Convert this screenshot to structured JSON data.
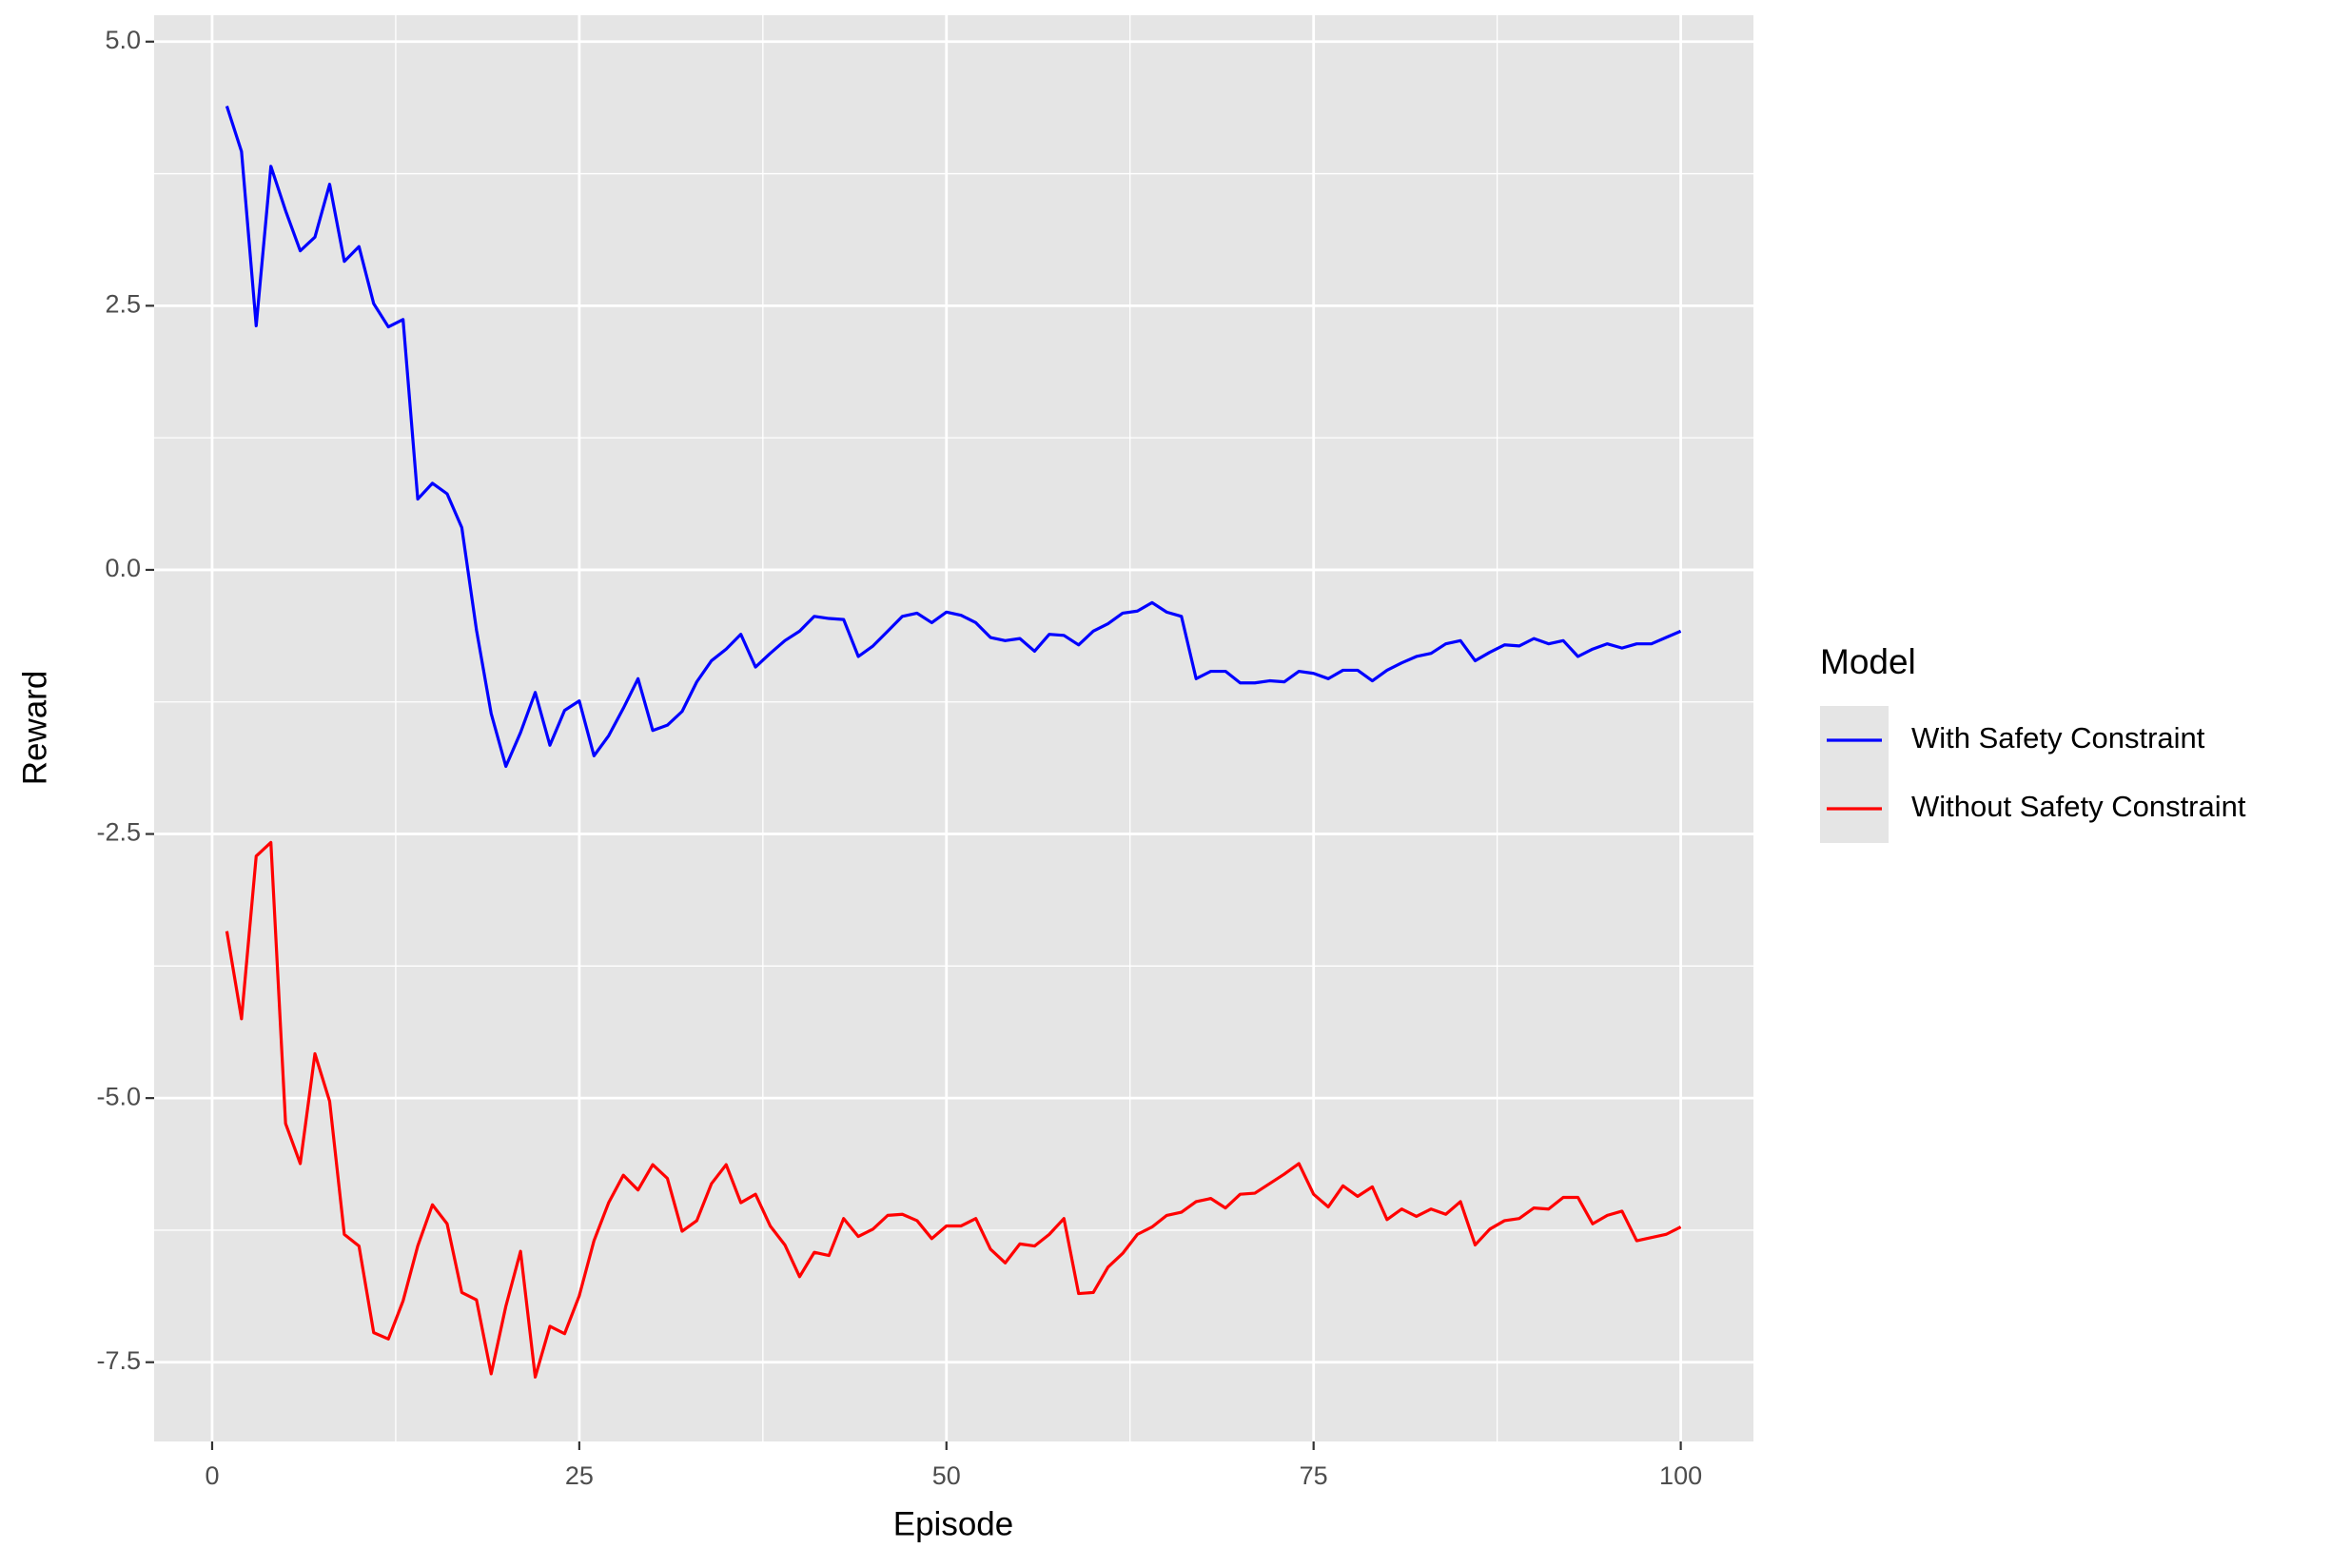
{
  "chart_data": {
    "type": "line",
    "x_label": "Episode",
    "y_label": "Reward",
    "legend_title": "Model",
    "legend_position": "right",
    "grid": true,
    "panel_color": "#e5e5e5",
    "xlim": [
      -3.95,
      104.95
    ],
    "ylim": [
      -8.25,
      5.25
    ],
    "xticks": [
      0,
      25,
      50,
      75,
      100
    ],
    "yticks": [
      -7.5,
      {
        "value": -5,
        "label": "-5.0"
      },
      -2.5,
      {
        "value": 0,
        "label": "0.0"
      },
      2.5,
      {
        "value": 5,
        "label": "5.0"
      }
    ],
    "x": [
      1,
      2,
      3,
      4,
      5,
      6,
      7,
      8,
      9,
      10,
      11,
      12,
      13,
      14,
      15,
      16,
      17,
      18,
      19,
      20,
      21,
      22,
      23,
      24,
      25,
      26,
      27,
      28,
      29,
      30,
      31,
      32,
      33,
      34,
      35,
      36,
      37,
      38,
      39,
      40,
      41,
      42,
      43,
      44,
      45,
      46,
      47,
      48,
      49,
      50,
      51,
      52,
      53,
      54,
      55,
      56,
      57,
      58,
      59,
      60,
      61,
      62,
      63,
      64,
      65,
      66,
      67,
      68,
      69,
      70,
      71,
      72,
      73,
      74,
      75,
      76,
      77,
      78,
      79,
      80,
      81,
      82,
      83,
      84,
      85,
      86,
      87,
      88,
      89,
      90,
      91,
      92,
      93,
      94,
      95,
      96,
      97,
      98,
      99,
      100
    ],
    "series": [
      {
        "name": "With Safety Constraint",
        "color": "#0000ff",
        "values": [
          4.39,
          3.96,
          2.31,
          3.82,
          3.4,
          3.02,
          3.15,
          3.65,
          2.92,
          3.06,
          2.52,
          2.3,
          2.37,
          0.67,
          0.82,
          0.72,
          0.4,
          -0.57,
          -1.36,
          -1.86,
          -1.54,
          -1.16,
          -1.66,
          -1.33,
          -1.24,
          -1.76,
          -1.57,
          -1.31,
          -1.03,
          -1.52,
          -1.47,
          -1.34,
          -1.06,
          -0.86,
          -0.75,
          -0.61,
          -0.92,
          -0.79,
          -0.67,
          -0.58,
          -0.44,
          -0.46,
          -0.47,
          -0.82,
          -0.72,
          -0.58,
          -0.44,
          -0.41,
          -0.5,
          -0.4,
          -0.43,
          -0.5,
          -0.64,
          -0.67,
          -0.65,
          -0.77,
          -0.61,
          -0.62,
          -0.71,
          -0.58,
          -0.51,
          -0.41,
          -0.39,
          -0.31,
          -0.4,
          -0.44,
          -1.03,
          -0.96,
          -0.96,
          -1.07,
          -1.07,
          -1.05,
          -1.06,
          -0.96,
          -0.98,
          -1.03,
          -0.95,
          -0.95,
          -1.05,
          -0.95,
          -0.88,
          -0.82,
          -0.79,
          -0.7,
          -0.67,
          -0.86,
          -0.78,
          -0.71,
          -0.72,
          -0.65,
          -0.7,
          -0.67,
          -0.82,
          -0.75,
          -0.7,
          -0.74,
          -0.7,
          -0.7,
          -0.64,
          -0.58
        ]
      },
      {
        "name": "Without Safety Constraint",
        "color": "#ff0000",
        "values": [
          -3.42,
          -4.25,
          -2.71,
          -2.58,
          -5.24,
          -5.62,
          -4.58,
          -5.03,
          -6.29,
          -6.4,
          -7.22,
          -7.28,
          -6.92,
          -6.4,
          -6.01,
          -6.19,
          -6.84,
          -6.91,
          -7.61,
          -6.97,
          -6.45,
          -7.64,
          -7.16,
          -7.23,
          -6.87,
          -6.35,
          -5.99,
          -5.73,
          -5.87,
          -5.63,
          -5.76,
          -6.26,
          -6.16,
          -5.81,
          -5.63,
          -5.99,
          -5.91,
          -6.21,
          -6.39,
          -6.69,
          -6.46,
          -6.49,
          -6.14,
          -6.31,
          -6.24,
          -6.11,
          -6.1,
          -6.16,
          -6.33,
          -6.21,
          -6.21,
          -6.14,
          -6.43,
          -6.56,
          -6.38,
          -6.4,
          -6.29,
          -6.14,
          -6.85,
          -6.84,
          -6.6,
          -6.47,
          -6.29,
          -6.22,
          -6.11,
          -6.08,
          -5.98,
          -5.95,
          -6.04,
          -5.91,
          -5.9,
          -5.81,
          -5.72,
          -5.62,
          -5.91,
          -6.03,
          -5.83,
          -5.93,
          -5.84,
          -6.15,
          -6.05,
          -6.12,
          -6.05,
          -6.1,
          -5.98,
          -6.39,
          -6.24,
          -6.16,
          -6.14,
          -6.04,
          -6.05,
          -5.94,
          -5.94,
          -6.19,
          -6.11,
          -6.07,
          -6.35,
          -6.32,
          -6.29,
          -6.22
        ]
      }
    ]
  }
}
